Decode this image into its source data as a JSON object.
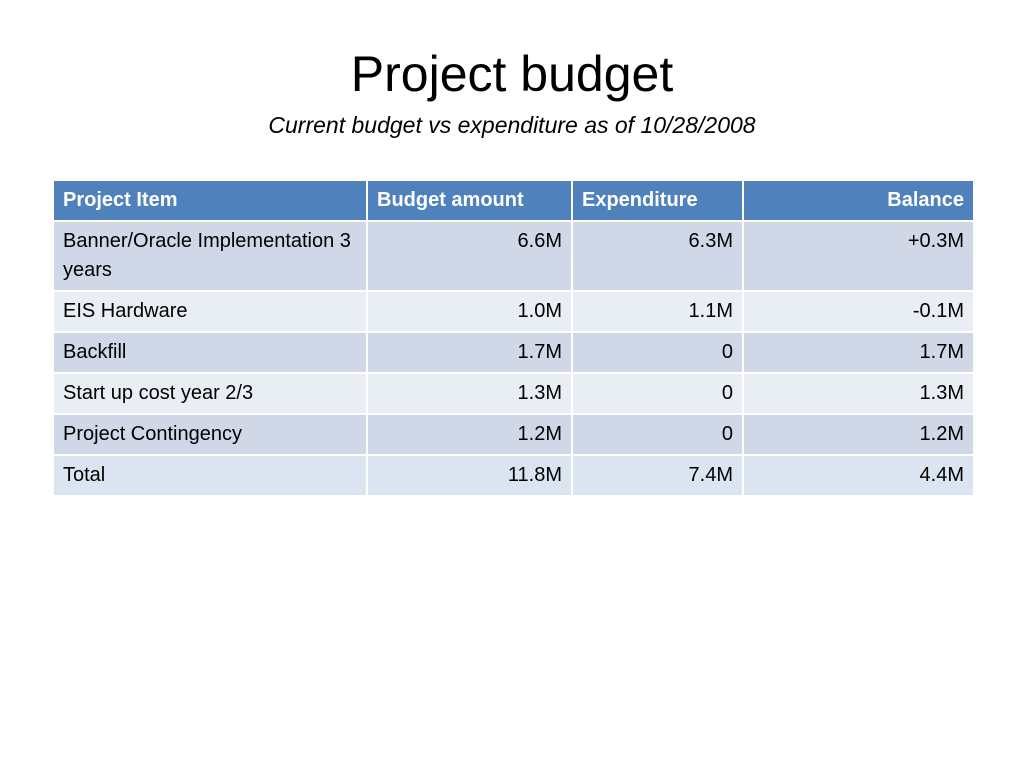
{
  "slide": {
    "title": "Project budget",
    "subtitle": "Current budget vs expenditure as of 10/28/2008"
  },
  "table": {
    "headers": [
      "Project Item",
      "Budget amount",
      "Expenditure",
      "Balance"
    ],
    "rows": [
      [
        "Banner/Oracle Implementation 3 years",
        "6.6M",
        "6.3M",
        "+0.3M"
      ],
      [
        "EIS Hardware",
        "1.0M",
        "1.1M",
        "-0.1M"
      ],
      [
        "Backfill",
        "1.7M",
        "0",
        "1.7M"
      ],
      [
        "Start up cost year 2/3",
        "1.3M",
        "0",
        "1.3M"
      ],
      [
        "Project Contingency",
        "1.2M",
        "0",
        "1.2M"
      ],
      [
        "Total",
        "11.8M",
        "7.4M",
        "4.4M"
      ]
    ]
  },
  "colors": {
    "header_bg": "#4f81bd",
    "row_odd_bg": "#d0d8e8",
    "row_even_bg": "#e9edf4",
    "header_text": "#ffffff"
  }
}
